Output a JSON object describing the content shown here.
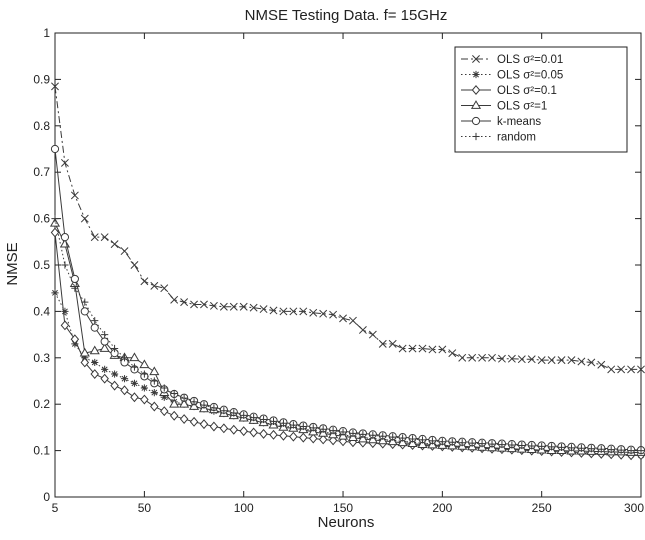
{
  "chart_data": {
    "type": "line",
    "title": "NMSE Testing Data. f= 15GHz",
    "xlabel": "Neurons",
    "ylabel": "NMSE",
    "xlim": [
      5,
      300
    ],
    "ylim": [
      0,
      1
    ],
    "xticks": [
      5,
      50,
      100,
      150,
      200,
      250,
      300
    ],
    "xtick_labels": [
      "5",
      "50",
      "100",
      "150",
      "200",
      "250",
      "300"
    ],
    "yticks": [
      0,
      0.1,
      0.2,
      0.3,
      0.4,
      0.5,
      0.6,
      0.7,
      0.8,
      0.9,
      1
    ],
    "ytick_labels": [
      "0",
      "0.1",
      "0.2",
      "0.3",
      "0.4",
      "0.5",
      "0.6",
      "0.7",
      "0.8",
      "0.9",
      "1"
    ],
    "grid": false,
    "legend_position": "top-right",
    "series": [
      {
        "name": "OLS σ²=0.01",
        "marker": "x",
        "line_style": "dash-dot",
        "x": [
          5,
          10,
          15,
          20,
          25,
          30,
          35,
          40,
          45,
          50,
          55,
          60,
          65,
          70,
          75,
          80,
          85,
          90,
          95,
          100,
          105,
          110,
          115,
          120,
          125,
          130,
          135,
          140,
          145,
          150,
          155,
          160,
          165,
          170,
          175,
          180,
          185,
          190,
          195,
          200,
          205,
          210,
          215,
          220,
          225,
          230,
          235,
          240,
          245,
          250,
          255,
          260,
          265,
          270,
          275,
          280,
          285,
          290,
          295,
          300
        ],
        "y": [
          0.885,
          0.72,
          0.65,
          0.6,
          0.56,
          0.56,
          0.545,
          0.53,
          0.5,
          0.465,
          0.455,
          0.45,
          0.425,
          0.42,
          0.415,
          0.415,
          0.412,
          0.41,
          0.41,
          0.41,
          0.408,
          0.405,
          0.402,
          0.4,
          0.4,
          0.4,
          0.397,
          0.395,
          0.393,
          0.385,
          0.38,
          0.36,
          0.35,
          0.33,
          0.33,
          0.32,
          0.32,
          0.32,
          0.318,
          0.318,
          0.31,
          0.3,
          0.3,
          0.3,
          0.3,
          0.298,
          0.298,
          0.297,
          0.297,
          0.295,
          0.295,
          0.295,
          0.295,
          0.292,
          0.29,
          0.285,
          0.275,
          0.275,
          0.275,
          0.275
        ]
      },
      {
        "name": "OLS σ²=0.05",
        "marker": "asterisk",
        "line_style": "dotted",
        "x": [
          5,
          10,
          15,
          20,
          25,
          30,
          35,
          40,
          45,
          50,
          55,
          60,
          65,
          70,
          75,
          80,
          85,
          90,
          95,
          100,
          105,
          110,
          115,
          120,
          125,
          130,
          135,
          140,
          145,
          150,
          155,
          160,
          165,
          170,
          175,
          180,
          185,
          190,
          195,
          200,
          205,
          210,
          215,
          220,
          225,
          230,
          235,
          240,
          245,
          250,
          255,
          260,
          265,
          270,
          275,
          280,
          285,
          290,
          295,
          300
        ],
        "y": [
          0.44,
          0.4,
          0.33,
          0.3,
          0.29,
          0.275,
          0.265,
          0.255,
          0.245,
          0.235,
          0.225,
          0.215,
          0.205,
          0.2,
          0.195,
          0.19,
          0.185,
          0.18,
          0.175,
          0.17,
          0.165,
          0.16,
          0.157,
          0.153,
          0.15,
          0.147,
          0.143,
          0.14,
          0.137,
          0.134,
          0.131,
          0.128,
          0.126,
          0.124,
          0.122,
          0.12,
          0.118,
          0.116,
          0.114,
          0.112,
          0.11,
          0.109,
          0.108,
          0.106,
          0.105,
          0.104,
          0.103,
          0.102,
          0.101,
          0.1,
          0.099,
          0.098,
          0.097,
          0.096,
          0.095,
          0.094,
          0.093,
          0.092,
          0.091,
          0.09
        ]
      },
      {
        "name": "OLS σ²=0.1",
        "marker": "diamond",
        "line_style": "solid",
        "x": [
          5,
          10,
          15,
          20,
          25,
          30,
          35,
          40,
          45,
          50,
          55,
          60,
          65,
          70,
          75,
          80,
          85,
          90,
          95,
          100,
          105,
          110,
          115,
          120,
          125,
          130,
          135,
          140,
          145,
          150,
          155,
          160,
          165,
          170,
          175,
          180,
          185,
          190,
          195,
          200,
          205,
          210,
          215,
          220,
          225,
          230,
          235,
          240,
          245,
          250,
          255,
          260,
          265,
          270,
          275,
          280,
          285,
          290,
          295,
          300
        ],
        "y": [
          0.57,
          0.37,
          0.34,
          0.29,
          0.265,
          0.255,
          0.24,
          0.23,
          0.215,
          0.21,
          0.195,
          0.185,
          0.175,
          0.168,
          0.162,
          0.157,
          0.152,
          0.148,
          0.145,
          0.142,
          0.139,
          0.136,
          0.134,
          0.132,
          0.13,
          0.128,
          0.126,
          0.124,
          0.122,
          0.12,
          0.118,
          0.117,
          0.116,
          0.115,
          0.114,
          0.113,
          0.112,
          0.111,
          0.11,
          0.109,
          0.108,
          0.107,
          0.106,
          0.105,
          0.104,
          0.103,
          0.102,
          0.101,
          0.1,
          0.099,
          0.098,
          0.097,
          0.096,
          0.095,
          0.094,
          0.093,
          0.092,
          0.091,
          0.09,
          0.09
        ]
      },
      {
        "name": "OLS σ²=1",
        "marker": "triangle",
        "line_style": "solid",
        "x": [
          5,
          10,
          15,
          20,
          25,
          30,
          35,
          40,
          45,
          50,
          55,
          60,
          65,
          70,
          75,
          80,
          85,
          90,
          95,
          100,
          105,
          110,
          115,
          120,
          125,
          130,
          135,
          140,
          145,
          150,
          155,
          160,
          165,
          170,
          175,
          180,
          185,
          190,
          195,
          200,
          205,
          210,
          215,
          220,
          225,
          230,
          235,
          240,
          245,
          250,
          255,
          260,
          265,
          270,
          275,
          280,
          285,
          290,
          295,
          300
        ],
        "y": [
          0.59,
          0.545,
          0.46,
          0.31,
          0.315,
          0.32,
          0.305,
          0.3,
          0.3,
          0.285,
          0.27,
          0.225,
          0.2,
          0.2,
          0.195,
          0.19,
          0.188,
          0.18,
          0.175,
          0.17,
          0.165,
          0.16,
          0.155,
          0.15,
          0.148,
          0.145,
          0.14,
          0.137,
          0.134,
          0.131,
          0.128,
          0.125,
          0.123,
          0.121,
          0.119,
          0.117,
          0.115,
          0.113,
          0.112,
          0.111,
          0.11,
          0.109,
          0.108,
          0.107,
          0.106,
          0.105,
          0.104,
          0.103,
          0.102,
          0.101,
          0.1,
          0.1,
          0.099,
          0.099,
          0.098,
          0.098,
          0.097,
          0.097,
          0.096,
          0.096
        ]
      },
      {
        "name": "k-means",
        "marker": "circle",
        "line_style": "solid",
        "x": [
          5,
          10,
          15,
          20,
          25,
          30,
          35,
          40,
          45,
          50,
          55,
          60,
          65,
          70,
          75,
          80,
          85,
          90,
          95,
          100,
          105,
          110,
          115,
          120,
          125,
          130,
          135,
          140,
          145,
          150,
          155,
          160,
          165,
          170,
          175,
          180,
          185,
          190,
          195,
          200,
          205,
          210,
          215,
          220,
          225,
          230,
          235,
          240,
          245,
          250,
          255,
          260,
          265,
          270,
          275,
          280,
          285,
          290,
          295,
          300
        ],
        "y": [
          0.75,
          0.56,
          0.47,
          0.4,
          0.365,
          0.335,
          0.31,
          0.29,
          0.275,
          0.26,
          0.245,
          0.232,
          0.222,
          0.214,
          0.207,
          0.2,
          0.194,
          0.188,
          0.183,
          0.178,
          0.173,
          0.169,
          0.165,
          0.161,
          0.157,
          0.154,
          0.151,
          0.148,
          0.145,
          0.142,
          0.139,
          0.137,
          0.135,
          0.133,
          0.131,
          0.129,
          0.127,
          0.125,
          0.123,
          0.121,
          0.12,
          0.119,
          0.118,
          0.117,
          0.116,
          0.115,
          0.114,
          0.113,
          0.112,
          0.111,
          0.11,
          0.109,
          0.108,
          0.107,
          0.106,
          0.105,
          0.104,
          0.103,
          0.102,
          0.101
        ]
      },
      {
        "name": "random",
        "marker": "plus",
        "line_style": "dotted",
        "x": [
          5,
          10,
          15,
          20,
          25,
          30,
          35,
          40,
          45,
          50,
          55,
          60,
          65,
          70,
          75,
          80,
          85,
          90,
          95,
          100,
          105,
          110,
          115,
          120,
          125,
          130,
          135,
          140,
          145,
          150,
          155,
          160,
          165,
          170,
          175,
          180,
          185,
          190,
          195,
          200,
          205,
          210,
          215,
          220,
          225,
          230,
          235,
          240,
          245,
          250,
          255,
          260,
          265,
          270,
          275,
          280,
          285,
          290,
          295,
          300
        ],
        "y": [
          0.6,
          0.5,
          0.45,
          0.42,
          0.38,
          0.35,
          0.32,
          0.3,
          0.28,
          0.265,
          0.25,
          0.235,
          0.223,
          0.213,
          0.205,
          0.198,
          0.192,
          0.186,
          0.181,
          0.176,
          0.171,
          0.167,
          0.163,
          0.159,
          0.155,
          0.152,
          0.149,
          0.146,
          0.143,
          0.14,
          0.137,
          0.135,
          0.133,
          0.131,
          0.129,
          0.127,
          0.125,
          0.123,
          0.121,
          0.119,
          0.118,
          0.117,
          0.116,
          0.115,
          0.114,
          0.113,
          0.112,
          0.111,
          0.11,
          0.109,
          0.108,
          0.107,
          0.106,
          0.105,
          0.104,
          0.103,
          0.102,
          0.101,
          0.1,
          0.1
        ]
      }
    ]
  }
}
